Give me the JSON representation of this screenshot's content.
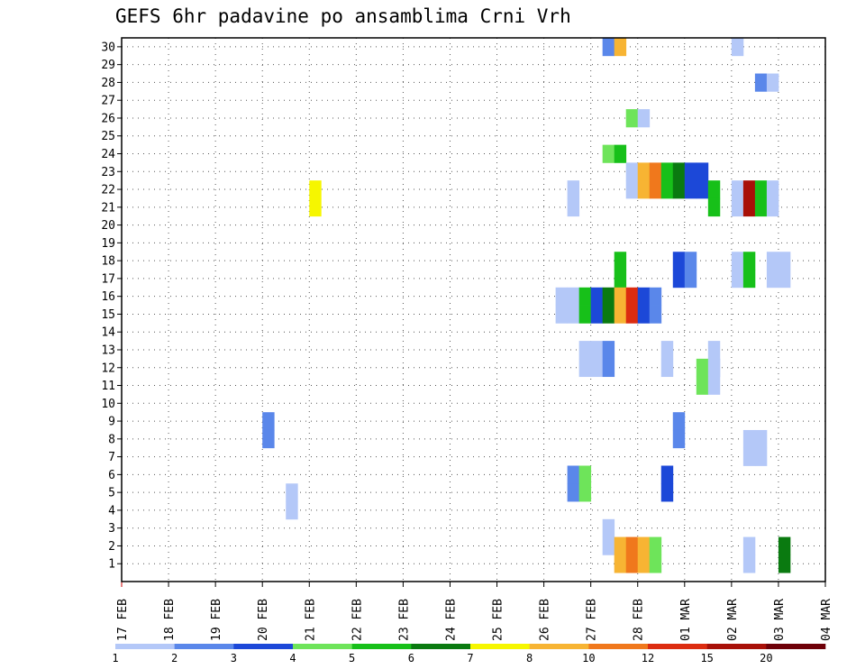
{
  "chart_data": {
    "type": "heatmap",
    "title": "GEFS 6hr padavine po ansamblima Crni Vrh",
    "x_tick_labels": [
      "17 FEB",
      "18 FEB",
      "19 FEB",
      "20 FEB",
      "21 FEB",
      "22 FEB",
      "23 FEB",
      "24 FEB",
      "25 FEB",
      "26 FEB",
      "27 FEB",
      "28 FEB",
      "01 MAR",
      "02 MAR",
      "03 MAR",
      "04 MAR"
    ],
    "y_tick_labels": [
      "1",
      "2",
      "3",
      "4",
      "5",
      "6",
      "7",
      "8",
      "9",
      "10",
      "11",
      "12",
      "13",
      "14",
      "15",
      "16",
      "17",
      "18",
      "19",
      "20",
      "21",
      "22",
      "23",
      "24",
      "25",
      "26",
      "27",
      "28",
      "29",
      "30"
    ],
    "y_range": [
      0,
      30.5
    ],
    "x_range_days": [
      0,
      15
    ],
    "steps_per_day": 4,
    "grid": true,
    "legend_position": "bottom",
    "colorbar": {
      "labels": [
        "1",
        "2",
        "3",
        "4",
        "5",
        "6",
        "7",
        "8",
        "10",
        "12",
        "15",
        "20"
      ],
      "colors": [
        "#b4c8f8",
        "#5a87ea",
        "#1c48d8",
        "#6ee45a",
        "#17c019",
        "#0a7a10",
        "#f6f600",
        "#f7b433",
        "#f0781c",
        "#dc2c10",
        "#a81008",
        "#6e0008"
      ]
    },
    "cells": [
      {
        "m": 30,
        "s": [
          [
            41,
            1
          ],
          [
            42,
            7
          ]
        ]
      },
      {
        "m": 30,
        "s": [
          [
            52,
            0
          ]
        ]
      },
      {
        "m": 28,
        "s": [
          [
            54,
            1
          ],
          [
            55,
            0
          ]
        ]
      },
      {
        "m": 26,
        "s": [
          [
            43,
            3
          ],
          [
            44,
            0
          ]
        ]
      },
      {
        "m": 24,
        "s": [
          [
            41,
            3
          ],
          [
            42,
            4
          ]
        ]
      },
      {
        "m": 23,
        "s": [
          [
            43,
            0
          ],
          [
            44,
            7
          ],
          [
            45,
            8
          ],
          [
            46,
            4
          ],
          [
            47,
            5
          ],
          [
            48,
            2
          ],
          [
            49,
            2
          ]
        ]
      },
      {
        "m": 22,
        "s": [
          [
            43,
            0
          ],
          [
            44,
            7
          ],
          [
            45,
            8
          ],
          [
            46,
            4
          ],
          [
            47,
            5
          ],
          [
            48,
            2
          ],
          [
            49,
            2
          ]
        ]
      },
      {
        "m": 22,
        "s": [
          [
            50,
            4
          ],
          [
            52,
            0
          ],
          [
            53,
            10
          ],
          [
            54,
            4
          ],
          [
            55,
            0
          ]
        ]
      },
      {
        "m": 21,
        "s": [
          [
            50,
            4
          ],
          [
            52,
            0
          ],
          [
            53,
            10
          ],
          [
            54,
            4
          ],
          [
            55,
            0
          ]
        ]
      },
      {
        "m": 22,
        "s": [
          [
            16,
            6
          ],
          [
            38,
            0
          ]
        ]
      },
      {
        "m": 21,
        "s": [
          [
            16,
            6
          ],
          [
            38,
            0
          ]
        ]
      },
      {
        "m": 18,
        "s": [
          [
            42,
            4
          ],
          [
            47,
            2
          ],
          [
            48,
            1
          ],
          [
            52,
            0
          ],
          [
            53,
            4
          ],
          [
            55,
            0
          ],
          [
            56,
            0
          ]
        ]
      },
      {
        "m": 17,
        "s": [
          [
            42,
            4
          ],
          [
            47,
            2
          ],
          [
            48,
            1
          ],
          [
            52,
            0
          ],
          [
            53,
            4
          ],
          [
            55,
            0
          ],
          [
            56,
            0
          ]
        ]
      },
      {
        "m": 16,
        "s": [
          [
            37,
            0
          ],
          [
            38,
            0
          ],
          [
            39,
            4
          ],
          [
            40,
            2
          ],
          [
            41,
            5
          ],
          [
            42,
            7
          ],
          [
            43,
            9
          ],
          [
            44,
            2
          ],
          [
            45,
            1
          ]
        ]
      },
      {
        "m": 15,
        "s": [
          [
            37,
            0
          ],
          [
            38,
            0
          ],
          [
            39,
            4
          ],
          [
            40,
            2
          ],
          [
            41,
            5
          ],
          [
            42,
            7
          ],
          [
            43,
            9
          ],
          [
            44,
            2
          ],
          [
            45,
            1
          ]
        ]
      },
      {
        "m": 13,
        "s": [
          [
            39,
            0
          ],
          [
            40,
            0
          ],
          [
            41,
            1
          ],
          [
            46,
            0
          ]
        ]
      },
      {
        "m": 12,
        "s": [
          [
            39,
            0
          ],
          [
            40,
            0
          ],
          [
            41,
            1
          ],
          [
            46,
            0
          ]
        ]
      },
      {
        "m": 13,
        "s": [
          [
            50,
            0
          ]
        ]
      },
      {
        "m": 12,
        "s": [
          [
            50,
            0
          ]
        ]
      },
      {
        "m": 12,
        "s": [
          [
            49,
            3
          ],
          [
            50,
            0
          ]
        ]
      },
      {
        "m": 11,
        "s": [
          [
            49,
            3
          ],
          [
            50,
            0
          ]
        ]
      },
      {
        "m": 9,
        "s": [
          [
            12,
            1
          ],
          [
            47,
            1
          ]
        ]
      },
      {
        "m": 8,
        "s": [
          [
            12,
            1
          ],
          [
            47,
            1
          ]
        ]
      },
      {
        "m": 8,
        "s": [
          [
            53,
            0
          ],
          [
            54,
            0
          ]
        ]
      },
      {
        "m": 7,
        "s": [
          [
            53,
            0
          ],
          [
            54,
            0
          ]
        ]
      },
      {
        "m": 6,
        "s": [
          [
            38,
            1
          ],
          [
            39,
            3
          ],
          [
            46,
            2
          ]
        ]
      },
      {
        "m": 5,
        "s": [
          [
            38,
            1
          ],
          [
            39,
            3
          ],
          [
            46,
            2
          ]
        ]
      },
      {
        "m": 5,
        "s": [
          [
            14,
            0
          ]
        ]
      },
      {
        "m": 4,
        "s": [
          [
            14,
            0
          ]
        ]
      },
      {
        "m": 3,
        "s": [
          [
            41,
            0
          ]
        ]
      },
      {
        "m": 2,
        "s": [
          [
            41,
            0
          ]
        ]
      },
      {
        "m": 2,
        "s": [
          [
            42,
            7
          ],
          [
            43,
            8
          ],
          [
            44,
            7
          ],
          [
            45,
            3
          ]
        ]
      },
      {
        "m": 1,
        "s": [
          [
            42,
            7
          ],
          [
            43,
            8
          ],
          [
            44,
            7
          ],
          [
            45,
            3
          ]
        ]
      },
      {
        "m": 2,
        "s": [
          [
            53,
            0
          ]
        ]
      },
      {
        "m": 1,
        "s": [
          [
            53,
            0
          ]
        ]
      },
      {
        "m": 2,
        "s": [
          [
            56,
            5
          ]
        ]
      },
      {
        "m": 1,
        "s": [
          [
            56,
            5
          ]
        ]
      }
    ]
  }
}
